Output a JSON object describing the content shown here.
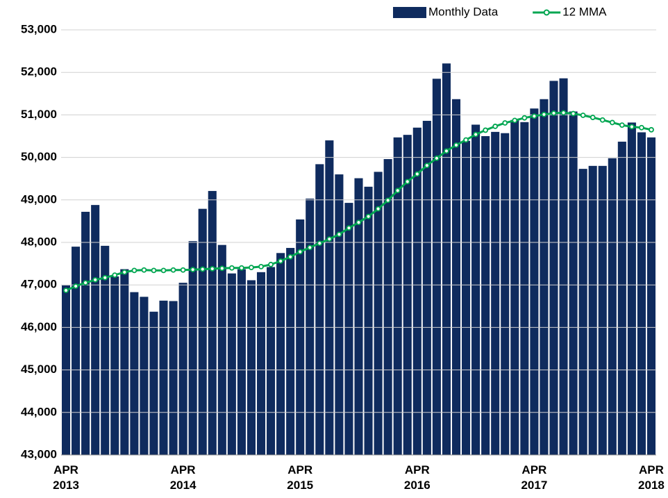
{
  "chart_data": {
    "type": "bar",
    "categories": [
      "APR 2013",
      null,
      null,
      null,
      null,
      null,
      null,
      null,
      null,
      null,
      null,
      null,
      "APR 2014",
      null,
      null,
      null,
      null,
      null,
      null,
      null,
      null,
      null,
      null,
      null,
      "APR 2015",
      null,
      null,
      null,
      null,
      null,
      null,
      null,
      null,
      null,
      null,
      null,
      "APR 2016",
      null,
      null,
      null,
      null,
      null,
      null,
      null,
      null,
      null,
      null,
      null,
      "APR 2017",
      null,
      null,
      null,
      null,
      null,
      null,
      null,
      null,
      null,
      null,
      null,
      "APR 2018"
    ],
    "series": [
      {
        "name": "Monthly Data",
        "type": "bar",
        "color": "#0f2b5e",
        "values": [
          46990,
          47900,
          48720,
          48880,
          47920,
          47200,
          47370,
          46830,
          46720,
          46370,
          46630,
          46620,
          47050,
          48030,
          48790,
          49210,
          47940,
          47270,
          47370,
          47110,
          47300,
          47420,
          47750,
          47870,
          48540,
          49030,
          49840,
          50400,
          49600,
          48930,
          49510,
          49310,
          49660,
          49960,
          50470,
          50530,
          50700,
          50860,
          51850,
          52210,
          51370,
          50390,
          50770,
          50500,
          50600,
          50570,
          50880,
          50830,
          51150,
          51370,
          51800,
          51860,
          51080,
          49730,
          49800,
          49800,
          49980,
          50370,
          50820,
          50590,
          50470
        ]
      },
      {
        "name": "12 MMA",
        "type": "line",
        "color": "#00a651",
        "values": [
          46870,
          46970,
          47050,
          47120,
          47170,
          47230,
          47300,
          47340,
          47350,
          47340,
          47340,
          47350,
          47350,
          47360,
          47370,
          47380,
          47390,
          47400,
          47400,
          47410,
          47430,
          47480,
          47560,
          47660,
          47780,
          47880,
          47980,
          48080,
          48190,
          48340,
          48470,
          48610,
          48790,
          48990,
          49220,
          49430,
          49610,
          49810,
          49980,
          50150,
          50290,
          50410,
          50540,
          50640,
          50730,
          50810,
          50870,
          50930,
          50970,
          51010,
          51040,
          51050,
          51030,
          50990,
          50940,
          50880,
          50820,
          50760,
          50720,
          50700,
          50650
        ]
      }
    ],
    "ylim": [
      43000,
      53000
    ],
    "yticks": [
      {
        "value": 43000,
        "label": "43,000"
      },
      {
        "value": 44000,
        "label": "44,000"
      },
      {
        "value": 45000,
        "label": "45,000"
      },
      {
        "value": 46000,
        "label": "46,000"
      },
      {
        "value": 47000,
        "label": "47,000"
      },
      {
        "value": 48000,
        "label": "48,000"
      },
      {
        "value": 49000,
        "label": "49,000"
      },
      {
        "value": 50000,
        "label": "50,000"
      },
      {
        "value": 51000,
        "label": "51,000"
      },
      {
        "value": 52000,
        "label": "52,000"
      },
      {
        "value": 53000,
        "label": "53,000"
      }
    ],
    "grid": true,
    "legend": "top-right"
  }
}
